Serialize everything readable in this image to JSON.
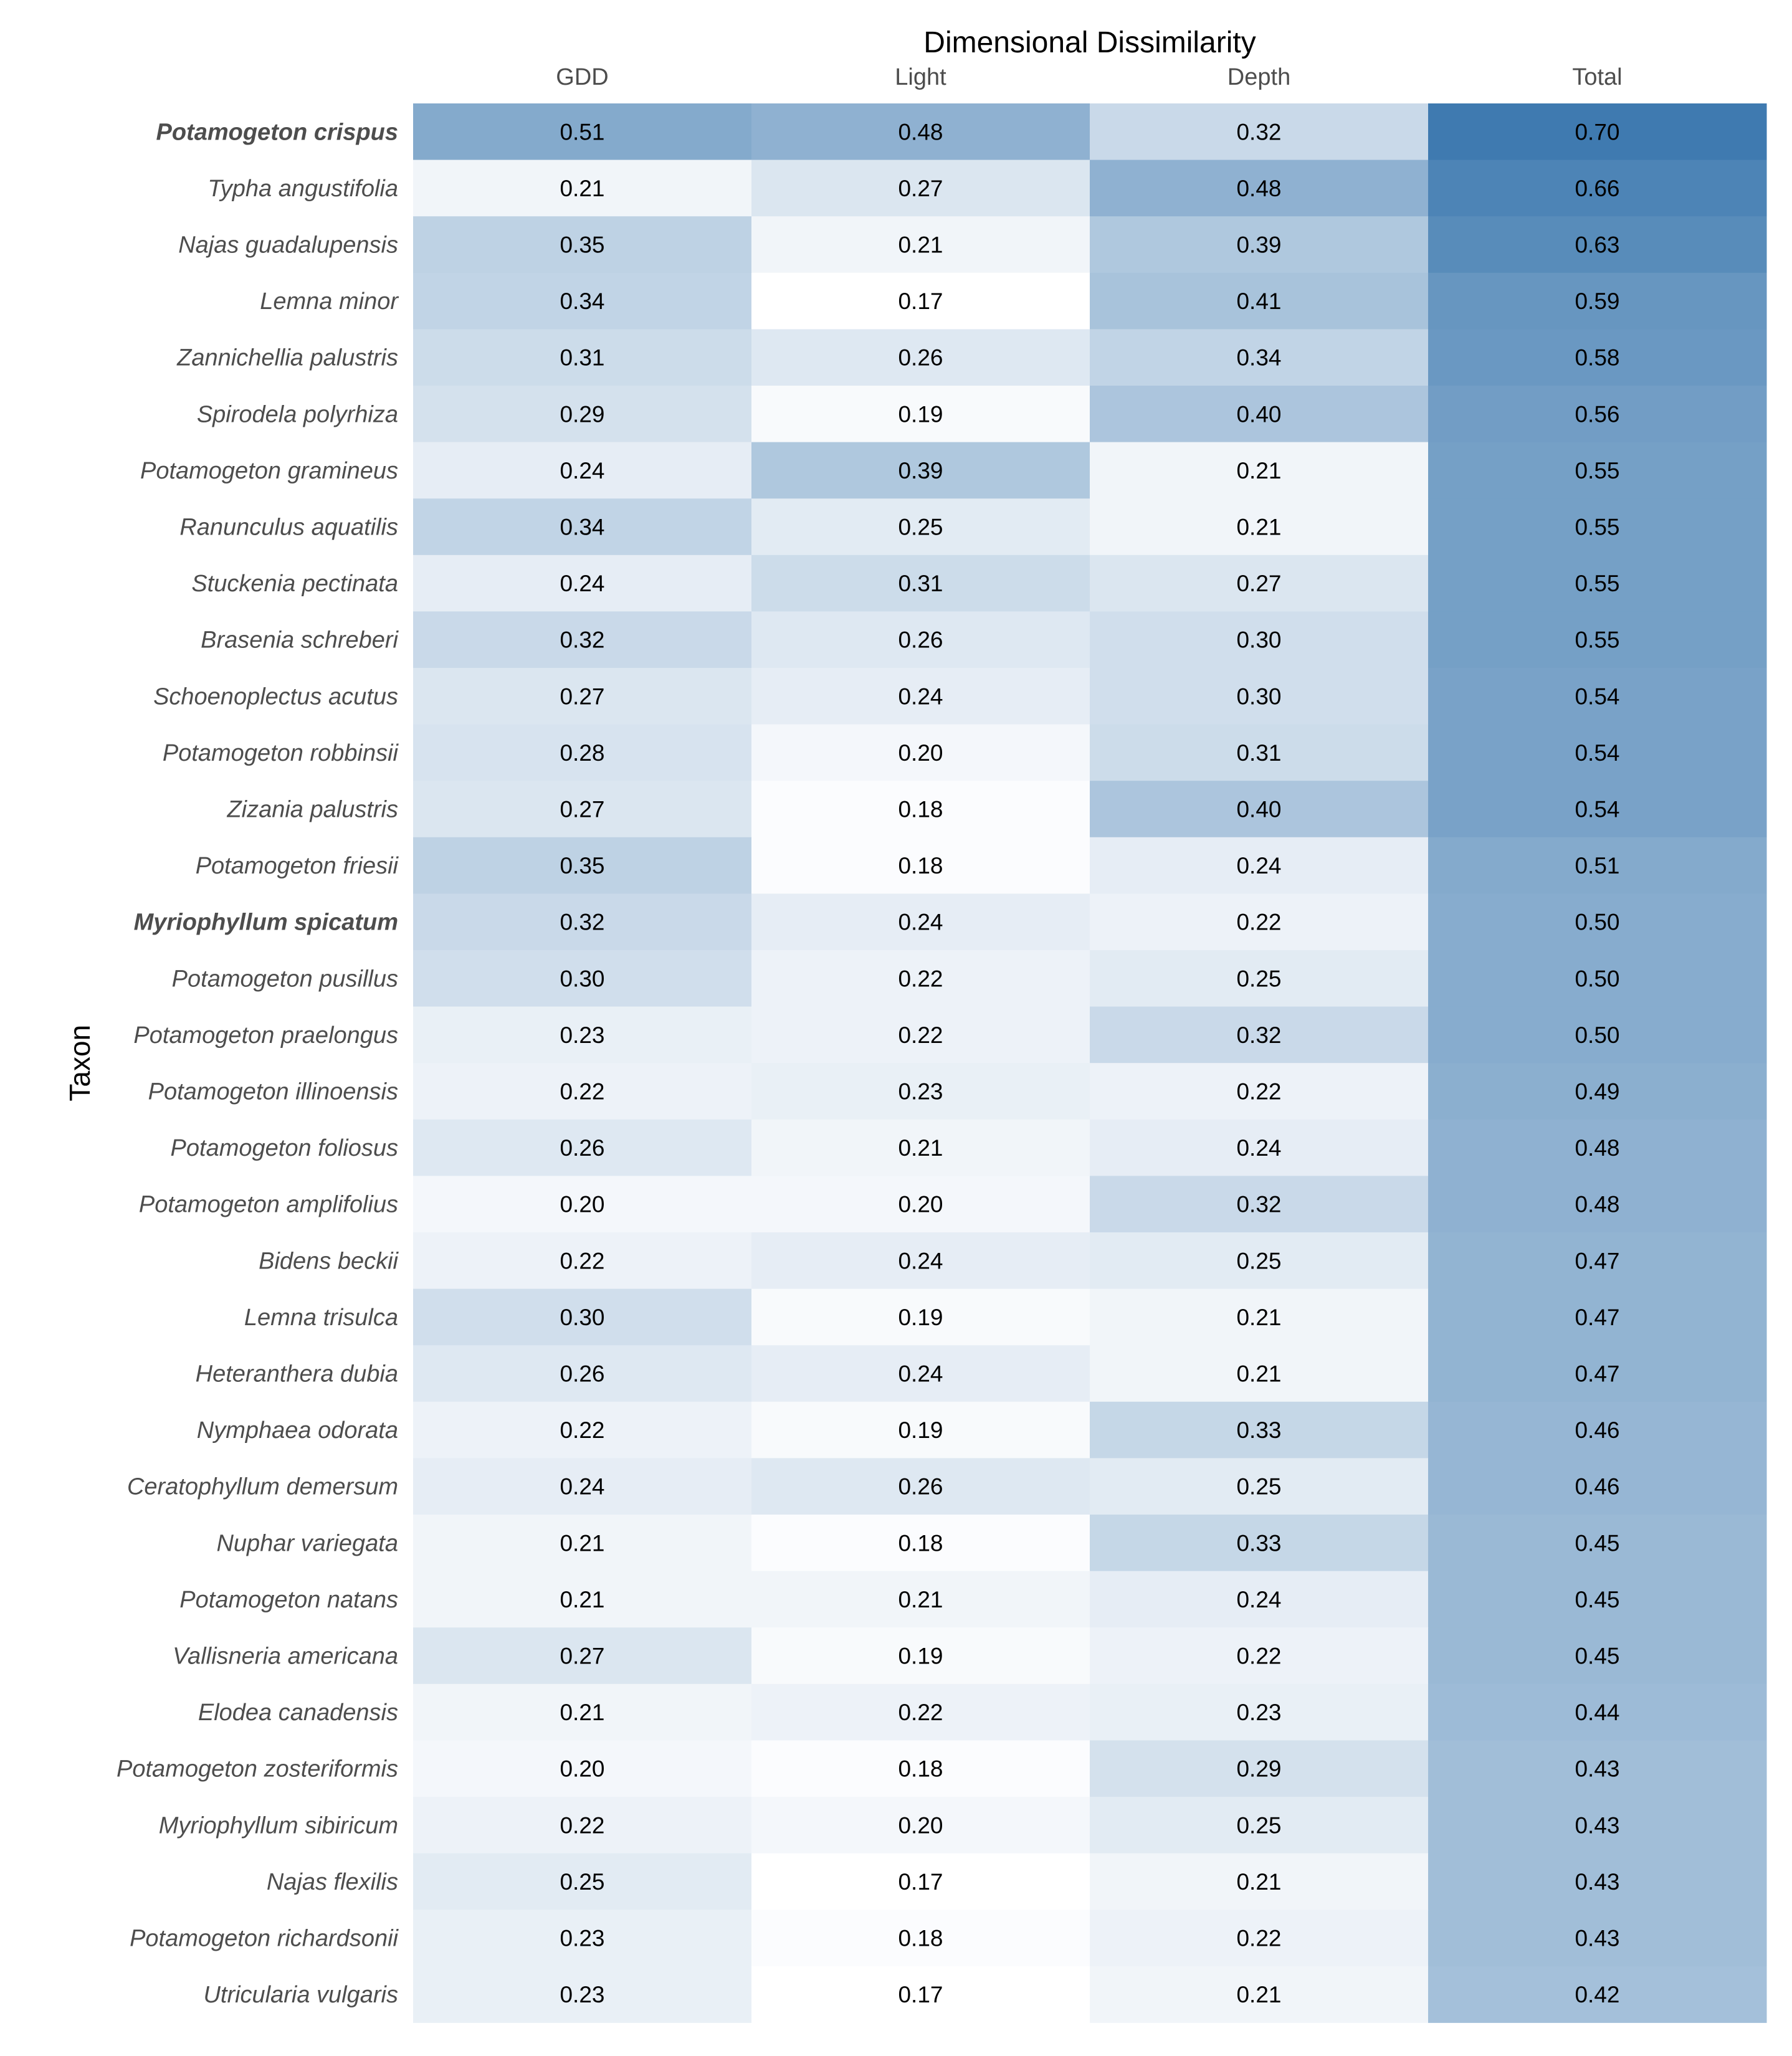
{
  "chart_data": {
    "type": "heatmap",
    "title": "Dimensional Dissimilarity",
    "ylabel": "Taxon",
    "columns": [
      "GDD",
      "Light",
      "Depth",
      "Total"
    ],
    "colors": {
      "low": "#ffffff",
      "high": "#3f7ab0",
      "text": "#000000",
      "axis_text": "#4d4d4d"
    },
    "color_scale": {
      "per_column": true,
      "domain": {
        "GDD": [
          0.17,
          0.7
        ],
        "Light": [
          0.17,
          0.7
        ],
        "Depth": [
          0.17,
          0.7
        ],
        "Total": [
          0.17,
          0.7
        ]
      }
    },
    "rows": [
      {
        "taxon": "Potamogeton crispus",
        "bold": true,
        "values": [
          "0.51",
          "0.48",
          "0.32",
          "0.70"
        ]
      },
      {
        "taxon": "Typha angustifolia",
        "bold": false,
        "values": [
          "0.21",
          "0.27",
          "0.48",
          "0.66"
        ]
      },
      {
        "taxon": "Najas guadalupensis",
        "bold": false,
        "values": [
          "0.35",
          "0.21",
          "0.39",
          "0.63"
        ]
      },
      {
        "taxon": "Lemna minor",
        "bold": false,
        "values": [
          "0.34",
          "0.17",
          "0.41",
          "0.59"
        ]
      },
      {
        "taxon": "Zannichellia palustris",
        "bold": false,
        "values": [
          "0.31",
          "0.26",
          "0.34",
          "0.58"
        ]
      },
      {
        "taxon": "Spirodela polyrhiza",
        "bold": false,
        "values": [
          "0.29",
          "0.19",
          "0.40",
          "0.56"
        ]
      },
      {
        "taxon": "Potamogeton gramineus",
        "bold": false,
        "values": [
          "0.24",
          "0.39",
          "0.21",
          "0.55"
        ]
      },
      {
        "taxon": "Ranunculus aquatilis",
        "bold": false,
        "values": [
          "0.34",
          "0.25",
          "0.21",
          "0.55"
        ]
      },
      {
        "taxon": "Stuckenia pectinata",
        "bold": false,
        "values": [
          "0.24",
          "0.31",
          "0.27",
          "0.55"
        ]
      },
      {
        "taxon": "Brasenia schreberi",
        "bold": false,
        "values": [
          "0.32",
          "0.26",
          "0.30",
          "0.55"
        ]
      },
      {
        "taxon": "Schoenoplectus acutus",
        "bold": false,
        "values": [
          "0.27",
          "0.24",
          "0.30",
          "0.54"
        ]
      },
      {
        "taxon": "Potamogeton robbinsii",
        "bold": false,
        "values": [
          "0.28",
          "0.20",
          "0.31",
          "0.54"
        ]
      },
      {
        "taxon": "Zizania palustris",
        "bold": false,
        "values": [
          "0.27",
          "0.18",
          "0.40",
          "0.54"
        ]
      },
      {
        "taxon": "Potamogeton friesii",
        "bold": false,
        "values": [
          "0.35",
          "0.18",
          "0.24",
          "0.51"
        ]
      },
      {
        "taxon": "Myriophyllum spicatum",
        "bold": true,
        "values": [
          "0.32",
          "0.24",
          "0.22",
          "0.50"
        ]
      },
      {
        "taxon": "Potamogeton pusillus",
        "bold": false,
        "values": [
          "0.30",
          "0.22",
          "0.25",
          "0.50"
        ]
      },
      {
        "taxon": "Potamogeton praelongus",
        "bold": false,
        "values": [
          "0.23",
          "0.22",
          "0.32",
          "0.50"
        ]
      },
      {
        "taxon": "Potamogeton illinoensis",
        "bold": false,
        "values": [
          "0.22",
          "0.23",
          "0.22",
          "0.49"
        ]
      },
      {
        "taxon": "Potamogeton foliosus",
        "bold": false,
        "values": [
          "0.26",
          "0.21",
          "0.24",
          "0.48"
        ]
      },
      {
        "taxon": "Potamogeton amplifolius",
        "bold": false,
        "values": [
          "0.20",
          "0.20",
          "0.32",
          "0.48"
        ]
      },
      {
        "taxon": "Bidens beckii",
        "bold": false,
        "values": [
          "0.22",
          "0.24",
          "0.25",
          "0.47"
        ]
      },
      {
        "taxon": "Lemna trisulca",
        "bold": false,
        "values": [
          "0.30",
          "0.19",
          "0.21",
          "0.47"
        ]
      },
      {
        "taxon": "Heteranthera dubia",
        "bold": false,
        "values": [
          "0.26",
          "0.24",
          "0.21",
          "0.47"
        ]
      },
      {
        "taxon": "Nymphaea odorata",
        "bold": false,
        "values": [
          "0.22",
          "0.19",
          "0.33",
          "0.46"
        ]
      },
      {
        "taxon": "Ceratophyllum demersum",
        "bold": false,
        "values": [
          "0.24",
          "0.26",
          "0.25",
          "0.46"
        ]
      },
      {
        "taxon": "Nuphar variegata",
        "bold": false,
        "values": [
          "0.21",
          "0.18",
          "0.33",
          "0.45"
        ]
      },
      {
        "taxon": "Potamogeton natans",
        "bold": false,
        "values": [
          "0.21",
          "0.21",
          "0.24",
          "0.45"
        ]
      },
      {
        "taxon": "Vallisneria americana",
        "bold": false,
        "values": [
          "0.27",
          "0.19",
          "0.22",
          "0.45"
        ]
      },
      {
        "taxon": "Elodea canadensis",
        "bold": false,
        "values": [
          "0.21",
          "0.22",
          "0.23",
          "0.44"
        ]
      },
      {
        "taxon": "Potamogeton zosteriformis",
        "bold": false,
        "values": [
          "0.20",
          "0.18",
          "0.29",
          "0.43"
        ]
      },
      {
        "taxon": "Myriophyllum sibiricum",
        "bold": false,
        "values": [
          "0.22",
          "0.20",
          "0.25",
          "0.43"
        ]
      },
      {
        "taxon": "Najas flexilis",
        "bold": false,
        "values": [
          "0.25",
          "0.17",
          "0.21",
          "0.43"
        ]
      },
      {
        "taxon": "Potamogeton richardsonii",
        "bold": false,
        "values": [
          "0.23",
          "0.18",
          "0.22",
          "0.43"
        ]
      },
      {
        "taxon": "Utricularia vulgaris",
        "bold": false,
        "values": [
          "0.23",
          "0.17",
          "0.21",
          "0.42"
        ]
      }
    ]
  }
}
